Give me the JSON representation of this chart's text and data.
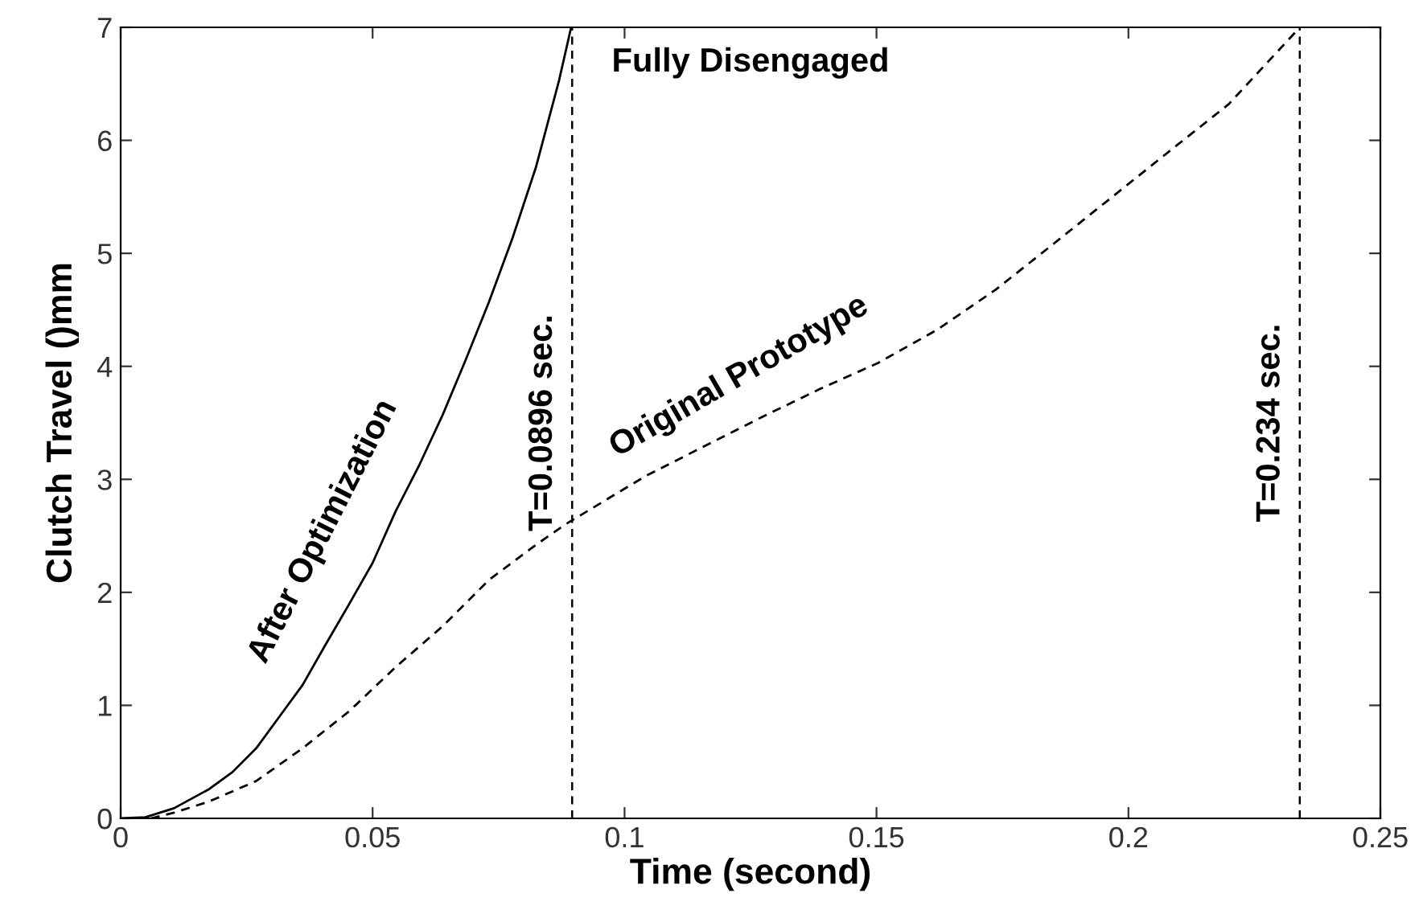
{
  "chart_data": {
    "type": "line",
    "xlabel": "Time (second)",
    "ylabel": "Clutch Travel ()mm",
    "xlim": [
      0,
      0.25
    ],
    "xticks": [
      0,
      0.05,
      0.1,
      0.15,
      0.2,
      0.25
    ],
    "ylim": [
      0,
      7
    ],
    "yticks": [
      0,
      1,
      2,
      3,
      4,
      5,
      6,
      7
    ],
    "grid": false,
    "legend": false,
    "series": [
      {
        "name": "After Optimization",
        "color": "#000000",
        "line_style": "solid",
        "x": [
          0,
          0.0049,
          0.0106,
          0.0176,
          0.0222,
          0.0269,
          0.0315,
          0.0361,
          0.0407,
          0.0454,
          0.05,
          0.0546,
          0.0593,
          0.0639,
          0.0685,
          0.0731,
          0.0778,
          0.0824,
          0.087,
          0.0894
        ],
        "values": [
          0,
          0.01,
          0.09,
          0.26,
          0.41,
          0.62,
          0.9,
          1.18,
          1.54,
          1.9,
          2.26,
          2.72,
          3.13,
          3.57,
          4.06,
          4.57,
          5.14,
          5.76,
          6.53,
          7.0
        ]
      },
      {
        "name": "Original Prototype",
        "color": "#000000",
        "line_style": "dashed",
        "x": [
          0.006,
          0.0106,
          0.0176,
          0.0269,
          0.0361,
          0.0454,
          0.0546,
          0.0639,
          0.0731,
          0.0824,
          0.0882,
          0.1042,
          0.1157,
          0.1272,
          0.1388,
          0.1503,
          0.1619,
          0.1737,
          0.1853,
          0.1968,
          0.2083,
          0.2199,
          0.2332
        ],
        "values": [
          0,
          0.05,
          0.15,
          0.33,
          0.62,
          0.95,
          1.34,
          1.7,
          2.11,
          2.42,
          2.6,
          3.03,
          3.29,
          3.55,
          3.8,
          4.03,
          4.32,
          4.68,
          5.09,
          5.5,
          5.91,
          6.32,
          6.96
        ]
      }
    ],
    "ref_lines": [
      {
        "axis": "x",
        "value": 0.0896,
        "label": "T=0.0896 sec.",
        "color": "#000000",
        "line_style": "dashed"
      },
      {
        "axis": "x",
        "value": 0.234,
        "label": "T=0.234 sec.",
        "color": "#000000",
        "line_style": "dashed"
      }
    ],
    "annotations": [
      "Fully Disengaged"
    ]
  }
}
